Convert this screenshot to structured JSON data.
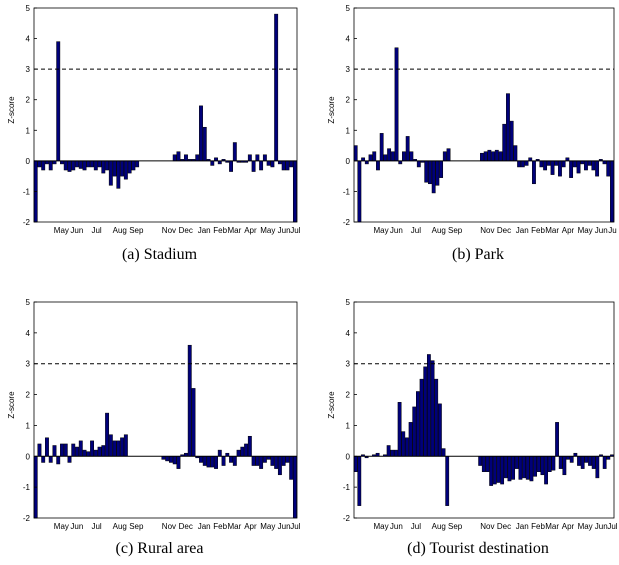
{
  "chart_data": [
    {
      "type": "bar",
      "caption": "(a) Stadium",
      "ylabel": "Z-score",
      "ylim": [
        -2,
        5
      ],
      "yticks": [
        -2,
        -1,
        0,
        1,
        2,
        3,
        4,
        5
      ],
      "xticks": [
        "May",
        "Jun",
        "Jul",
        "Aug",
        "Sep",
        "Nov",
        "Dec",
        "Jan",
        "Feb",
        "Mar",
        "Apr",
        "May",
        "Jun",
        "Jul"
      ],
      "reference_line": 3,
      "values": [
        -2,
        -0.2,
        -0.3,
        -0.1,
        -0.3,
        -0.1,
        3.9,
        -0.1,
        -0.3,
        -0.35,
        -0.3,
        -0.2,
        -0.25,
        -0.3,
        -0.2,
        -0.2,
        -0.3,
        -0.2,
        -0.4,
        -0.3,
        -0.8,
        -0.5,
        -0.9,
        -0.5,
        -0.6,
        -0.4,
        -0.3,
        -0.2,
        0,
        0,
        0,
        0,
        0,
        0,
        0,
        0,
        0,
        0.2,
        0.3,
        0.05,
        0.2,
        0.05,
        0.05,
        0.2,
        1.8,
        1.1,
        0.05,
        -0.15,
        0.1,
        -0.1,
        0.05,
        -0.05,
        -0.35,
        0.6,
        -0.05,
        -0.05,
        -0.05,
        0.2,
        -0.35,
        0.2,
        -0.3,
        0.2,
        -0.15,
        -0.2,
        4.8,
        -0.1,
        -0.3,
        -0.3,
        -0.2,
        -2
      ]
    },
    {
      "type": "bar",
      "caption": "(b) Park",
      "ylabel": "Z-score",
      "ylim": [
        -2,
        5
      ],
      "yticks": [
        -2,
        -1,
        0,
        1,
        2,
        3,
        4,
        5
      ],
      "xticks": [
        "May",
        "Jun",
        "Jul",
        "Aug",
        "Sep",
        "Nov",
        "Dec",
        "Jan",
        "Feb",
        "Mar",
        "Apr",
        "May",
        "Jun",
        "Ju"
      ],
      "reference_line": 3,
      "values": [
        0.5,
        -2,
        0.1,
        -0.1,
        0.2,
        0.3,
        -0.3,
        0.9,
        0.2,
        0.4,
        0.3,
        3.7,
        -0.1,
        0.3,
        0.8,
        0.3,
        0.05,
        -0.2,
        -0.05,
        -0.7,
        -0.75,
        -1.05,
        -0.8,
        -0.55,
        0.3,
        0.4,
        0,
        0,
        0,
        0,
        0,
        0,
        0,
        0,
        0.25,
        0.3,
        0.35,
        0.3,
        0.35,
        0.3,
        1.2,
        2.2,
        1.3,
        0.5,
        -0.2,
        -0.2,
        -0.15,
        0.1,
        -0.75,
        0.05,
        -0.2,
        -0.3,
        -0.15,
        -0.45,
        -0.15,
        -0.5,
        -0.2,
        0.1,
        -0.55,
        -0.2,
        -0.4,
        -0.1,
        -0.3,
        -0.15,
        -0.3,
        -0.5,
        0.05,
        -0.1,
        -0.5,
        -2
      ]
    },
    {
      "type": "bar",
      "caption": "(c) Rural area",
      "ylabel": "Z-score",
      "ylim": [
        -2,
        5
      ],
      "yticks": [
        -2,
        -1,
        0,
        1,
        2,
        3,
        4,
        5
      ],
      "xticks": [
        "May",
        "Jun",
        "Jul",
        "Aug",
        "Sep",
        "Nov",
        "Dec",
        "Jan",
        "Feb",
        "Mar",
        "Apr",
        "May",
        "Jun",
        "Jul"
      ],
      "reference_line": 3,
      "values": [
        -2,
        0.4,
        -0.2,
        0.6,
        -0.2,
        0.35,
        -0.25,
        0.4,
        0.4,
        -0.2,
        0.4,
        0.3,
        0.5,
        0.2,
        0.15,
        0.5,
        0.2,
        0.3,
        0.35,
        1.4,
        0.7,
        0.5,
        0.5,
        0.6,
        0.7,
        0,
        0,
        0,
        0,
        0,
        0,
        0,
        0,
        0,
        -0.1,
        -0.15,
        -0.2,
        -0.25,
        -0.4,
        0.05,
        0.1,
        3.6,
        2.2,
        -0.05,
        -0.2,
        -0.3,
        -0.35,
        -0.35,
        -0.4,
        0.2,
        -0.3,
        0.1,
        -0.2,
        -0.3,
        0.2,
        0.3,
        0.4,
        0.65,
        -0.3,
        -0.3,
        -0.4,
        -0.2,
        -0.1,
        -0.3,
        -0.4,
        -0.6,
        -0.3,
        -0.2,
        -0.75,
        -2
      ]
    },
    {
      "type": "bar",
      "caption": "(d) Tourist destination",
      "ylabel": "Z-score",
      "ylim": [
        -2,
        5
      ],
      "yticks": [
        -2,
        -1,
        0,
        1,
        2,
        3,
        4,
        5
      ],
      "xticks": [
        "May",
        "Jun",
        "Jul",
        "Aug",
        "Sep",
        "Nov",
        "Dec",
        "Jan",
        "Feb",
        "Mar",
        "Apr",
        "May",
        "Jun",
        "Jul"
      ],
      "reference_line": 3,
      "values": [
        -0.5,
        -1.6,
        0.05,
        -0.05,
        0,
        0.05,
        0.1,
        0,
        0.05,
        0.35,
        0.2,
        0.2,
        1.75,
        0.8,
        0.6,
        1.1,
        1.6,
        2.1,
        2.5,
        2.9,
        3.3,
        3.1,
        2.5,
        1.7,
        0.25,
        -1.6,
        0,
        0,
        0,
        0,
        0,
        0,
        0,
        0,
        -0.3,
        -0.5,
        -0.5,
        -0.95,
        -0.9,
        -0.85,
        -0.9,
        -0.7,
        -0.8,
        -0.75,
        -0.4,
        -0.75,
        -0.7,
        -0.75,
        -0.8,
        -0.65,
        -0.5,
        -0.6,
        -0.9,
        -0.5,
        -0.45,
        1.1,
        -0.4,
        -0.6,
        -0.1,
        -0.2,
        0.1,
        -0.3,
        -0.4,
        -0.2,
        -0.3,
        -0.4,
        -0.7,
        0.05,
        -0.4,
        -0.1,
        0.05
      ]
    }
  ]
}
